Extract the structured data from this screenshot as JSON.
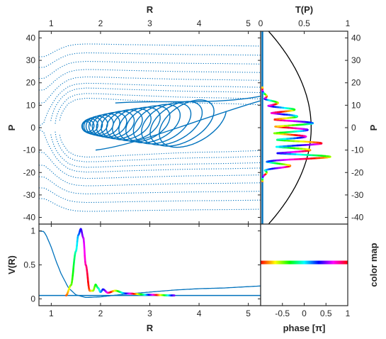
{
  "chart_data": [
    {
      "type": "line",
      "panel": "phase-space",
      "title": "",
      "xlabel": "R",
      "ylabel": "P",
      "xlim": [
        0.75,
        5.25
      ],
      "ylim": [
        -43,
        43
      ],
      "xticks": [
        "1",
        "2",
        "3",
        "4",
        "5"
      ],
      "yticks": [
        "40",
        "30",
        "20",
        "10",
        "0",
        "-10",
        "-20",
        "-30",
        "-40"
      ],
      "series": [
        {
          "style": "dotted",
          "color": "#0072BD",
          "energy_levels": [
            0.45,
            0.6,
            0.8,
            1.0,
            1.3,
            1.7,
            2.2,
            2.8,
            3.5
          ]
        },
        {
          "style": "solid",
          "color": "#0072BD",
          "note_values": {
            "outer_loop": {
              "R_min": 1.55,
              "R_max": 5.25,
              "P_min": -13,
              "P_max": 14
            }
          }
        }
      ]
    },
    {
      "type": "line",
      "panel": "transmission",
      "title": "",
      "xlabel": "T(P)",
      "ylabel": "P",
      "xlim": [
        0,
        1
      ],
      "ylim": [
        -43,
        43
      ],
      "xticks": [
        "0",
        "0.5",
        "1"
      ],
      "yticks": [
        "40",
        "30",
        "20",
        "10",
        "0",
        "-10",
        "-20",
        "-30",
        "-40"
      ],
      "transmission_curve": {
        "color": "#000000",
        "peak_T": 0.56,
        "P_at_peak": 0
      },
      "wavepacket_density": {
        "P": [
          -20,
          -17,
          -13,
          -10,
          -7,
          -4,
          -1,
          2,
          5,
          8,
          11,
          14
        ],
        "value": [
          0.05,
          0.32,
          0.78,
          0.55,
          0.68,
          0.5,
          0.52,
          0.58,
          0.4,
          0.37,
          0.18,
          0.05
        ]
      }
    },
    {
      "type": "line",
      "panel": "potential",
      "title": "",
      "xlabel": "R",
      "ylabel": "V(R)",
      "xlim": [
        0.75,
        5.25
      ],
      "ylim": [
        -0.1,
        1.1
      ],
      "xticks": [
        "1",
        "2",
        "3",
        "4",
        "5"
      ],
      "yticks": [
        "0",
        "0.5",
        "1"
      ],
      "potential": {
        "color": "#0072BD",
        "R": [
          0.75,
          0.85,
          0.9,
          1.0,
          1.1,
          1.2,
          1.35,
          1.5,
          1.7,
          2.0,
          2.5,
          3.0,
          3.5,
          4.0,
          4.5,
          5.0,
          5.25
        ],
        "V": [
          1.0,
          0.99,
          0.93,
          0.76,
          0.55,
          0.37,
          0.16,
          0.06,
          0.02,
          0.03,
          0.07,
          0.1,
          0.13,
          0.15,
          0.16,
          0.18,
          0.19
        ]
      },
      "wavepacket": {
        "R": [
          1.3,
          1.4,
          1.5,
          1.55,
          1.6,
          1.65,
          1.7,
          1.78,
          1.85,
          1.9,
          1.95,
          2.0,
          2.05,
          2.15,
          2.3,
          2.5,
          3.0,
          3.5
        ],
        "amplitude": [
          0.05,
          0.2,
          0.7,
          0.94,
          1.03,
          0.9,
          0.5,
          0.12,
          0.12,
          0.21,
          0.16,
          0.1,
          0.14,
          0.09,
          0.12,
          0.08,
          0.06,
          0.05
        ]
      }
    },
    {
      "type": "line",
      "panel": "color-map",
      "title": "",
      "xlabel": "phase [π]",
      "ylabel": "color map",
      "xlim": [
        -1,
        1
      ],
      "xticks": [
        "-0.5",
        "0",
        "0.5",
        "1"
      ],
      "colors": [
        "#ff0000",
        "#ffff00",
        "#00ff00",
        "#00ffff",
        "#0000ff",
        "#ff00ff",
        "#ff0000"
      ]
    }
  ]
}
